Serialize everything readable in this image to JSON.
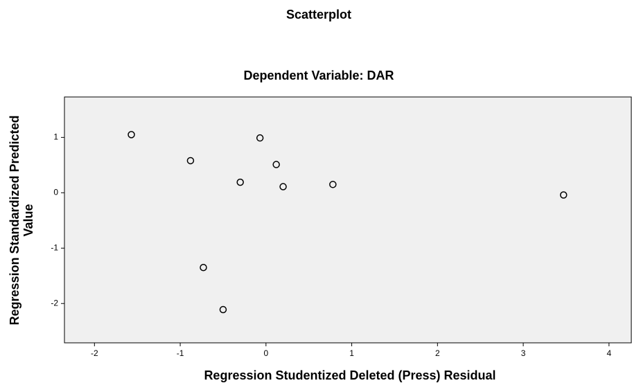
{
  "chart_data": {
    "type": "scatter",
    "title": "Scatterplot",
    "subtitle": "Dependent Variable: DAR",
    "xlabel": "Regression Studentized Deleted (Press) Residual",
    "ylabel": [
      "Regression Standardized Predicted",
      "Value"
    ],
    "x": [
      -1.57,
      -0.88,
      -0.07,
      0.12,
      -0.3,
      0.2,
      0.78,
      3.47,
      -0.73,
      -0.5
    ],
    "values": [
      1.05,
      0.58,
      0.99,
      0.51,
      0.19,
      0.11,
      0.15,
      -0.04,
      -1.35,
      -2.11
    ],
    "color": "#000000",
    "xlim": [
      -2.35,
      4.26
    ],
    "xticks": [
      -2,
      -1,
      0,
      1,
      2,
      3,
      4
    ],
    "ylim": [
      -2.71,
      1.73
    ],
    "yticks": [
      -2,
      -1,
      0,
      1
    ]
  }
}
